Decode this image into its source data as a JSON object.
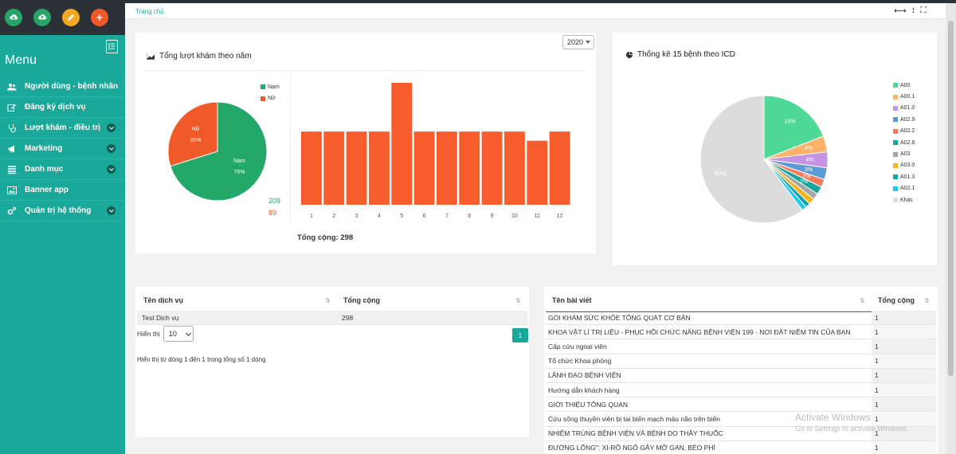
{
  "sidebar": {
    "menu_title": "Menu",
    "items": [
      {
        "label": "Người dùng - bệnh nhân",
        "icon": "users-icon",
        "has_submenu": false
      },
      {
        "label": "Đăng ký dịch vụ",
        "icon": "edit-icon",
        "has_submenu": false
      },
      {
        "label": "Lượt khám - điều trị",
        "icon": "stethoscope-icon",
        "has_submenu": true
      },
      {
        "label": "Marketing",
        "icon": "bullhorn-icon",
        "has_submenu": true
      },
      {
        "label": "Danh mục",
        "icon": "list-icon",
        "has_submenu": true
      },
      {
        "label": "Banner app",
        "icon": "image-icon",
        "has_submenu": false
      },
      {
        "label": "Quản trị hệ thống",
        "icon": "cogs-icon",
        "has_submenu": true
      }
    ],
    "top_buttons": [
      {
        "icon": "cloud-download-icon",
        "color": "#27a567"
      },
      {
        "icon": "cloud-upload-icon",
        "color": "#27a567"
      },
      {
        "icon": "pencil-icon",
        "color": "#f5a623"
      },
      {
        "icon": "plus-icon",
        "color": "#f05a28"
      }
    ]
  },
  "breadcrumb": "Trang chủ",
  "visits_card": {
    "title": "Tổng lượt khám theo năm",
    "year": "2020",
    "total_label": "Tổng cộng: 298",
    "pie": {
      "slices": [
        {
          "name": "Nam",
          "value": 209,
          "percent": "70%",
          "color": "#23a86a"
        },
        {
          "name": "Nữ",
          "value": 89,
          "percent": "30%",
          "color": "#f05a28"
        }
      ],
      "count_nam": "209",
      "count_nu": "89"
    }
  },
  "chart_data": [
    {
      "type": "pie",
      "title": "",
      "labels": [
        "Nam",
        "Nữ"
      ],
      "values": [
        209,
        89
      ],
      "percent_labels": [
        "70%",
        "30%"
      ],
      "legend": "top-right"
    },
    {
      "type": "bar",
      "categories": [
        "1",
        "2",
        "3",
        "4",
        "5",
        "6",
        "7",
        "8",
        "9",
        "10",
        "11",
        "12"
      ],
      "values": [
        24,
        24,
        24,
        24,
        40,
        24,
        24,
        24,
        24,
        24,
        21,
        24
      ],
      "ylim": [
        0,
        40
      ],
      "color": "#f75c2c"
    },
    {
      "type": "pie",
      "title": "Thống kê 15 bệnh theo ICD",
      "labels": [
        "A00",
        "A00.1",
        "A01.0",
        "A02.9",
        "A02.2",
        "A02.8",
        "A03",
        "A03.0",
        "A01.3",
        "A02.1",
        "Khác"
      ],
      "values": [
        19,
        4,
        4,
        3,
        2,
        2,
        1.6,
        1.5,
        1.2,
        1.2,
        60
      ],
      "percent_labels": [
        "19%",
        "4%",
        "4%",
        "3%",
        "2%",
        "2%",
        "",
        "",
        "",
        "",
        "60%"
      ],
      "colors": [
        "#4fd997",
        "#fdb26a",
        "#c593e3",
        "#5b9bd5",
        "#f47a5c",
        "#19a69a",
        "#a6a6a6",
        "#f3b41a",
        "#16a6a8",
        "#1bc8ee",
        "#dcdcdc"
      ],
      "legend": "right"
    }
  ],
  "icd_card": {
    "title": "Thống kê 15 bệnh theo ICD"
  },
  "service_table": {
    "headers": [
      "Tên dịch vụ",
      "Tổng cộng"
    ],
    "rows": [
      [
        "Test Dịch vụ",
        "298"
      ]
    ],
    "show_label": "Hiển thị",
    "page_size": "10",
    "info": "Hiển thị từ dòng 1 đến 1 trong tổng số 1 dòng",
    "page": "1"
  },
  "article_table": {
    "headers": [
      "Tên bài viết",
      "Tổng cộng"
    ],
    "rows": [
      [
        "GÓI KHÁM SỨC KHỎE TỔNG QUÁT CƠ BẢN",
        "1"
      ],
      [
        "KHOA VẬT LÍ TRỊ LIỆU - PHỤC HỒI CHỨC NĂNG BỆNH VIỆN 199 - NƠI ĐẶT NIỀM TIN CỦA BẠN",
        "1"
      ],
      [
        "Cấp cứu ngoại viện",
        "1"
      ],
      [
        "Tổ chức Khoa phòng",
        "1"
      ],
      [
        "LÃNH ĐẠO BỆNH VIỆN",
        "1"
      ],
      [
        "Hướng dẫn khách hàng",
        "1"
      ],
      [
        "GIỚI THIỆU TỔNG QUAN",
        "1"
      ],
      [
        "Cứu sống thuyền viên bị tai biến mạch máu não trên biển",
        "1"
      ],
      [
        "NHIỄM TRÙNG BỆNH VIỆN VÀ BỆNH DO THẦY THUỐC",
        "1"
      ],
      [
        "ĐƯỜNG LỐNG\": XI-RÔ NGÔ GÂY MỠ GAN, BÉO PHÌ",
        "1"
      ]
    ]
  },
  "watermark": {
    "line1": "Activate Windows",
    "line2": "Go to Settings to activate Windows."
  }
}
